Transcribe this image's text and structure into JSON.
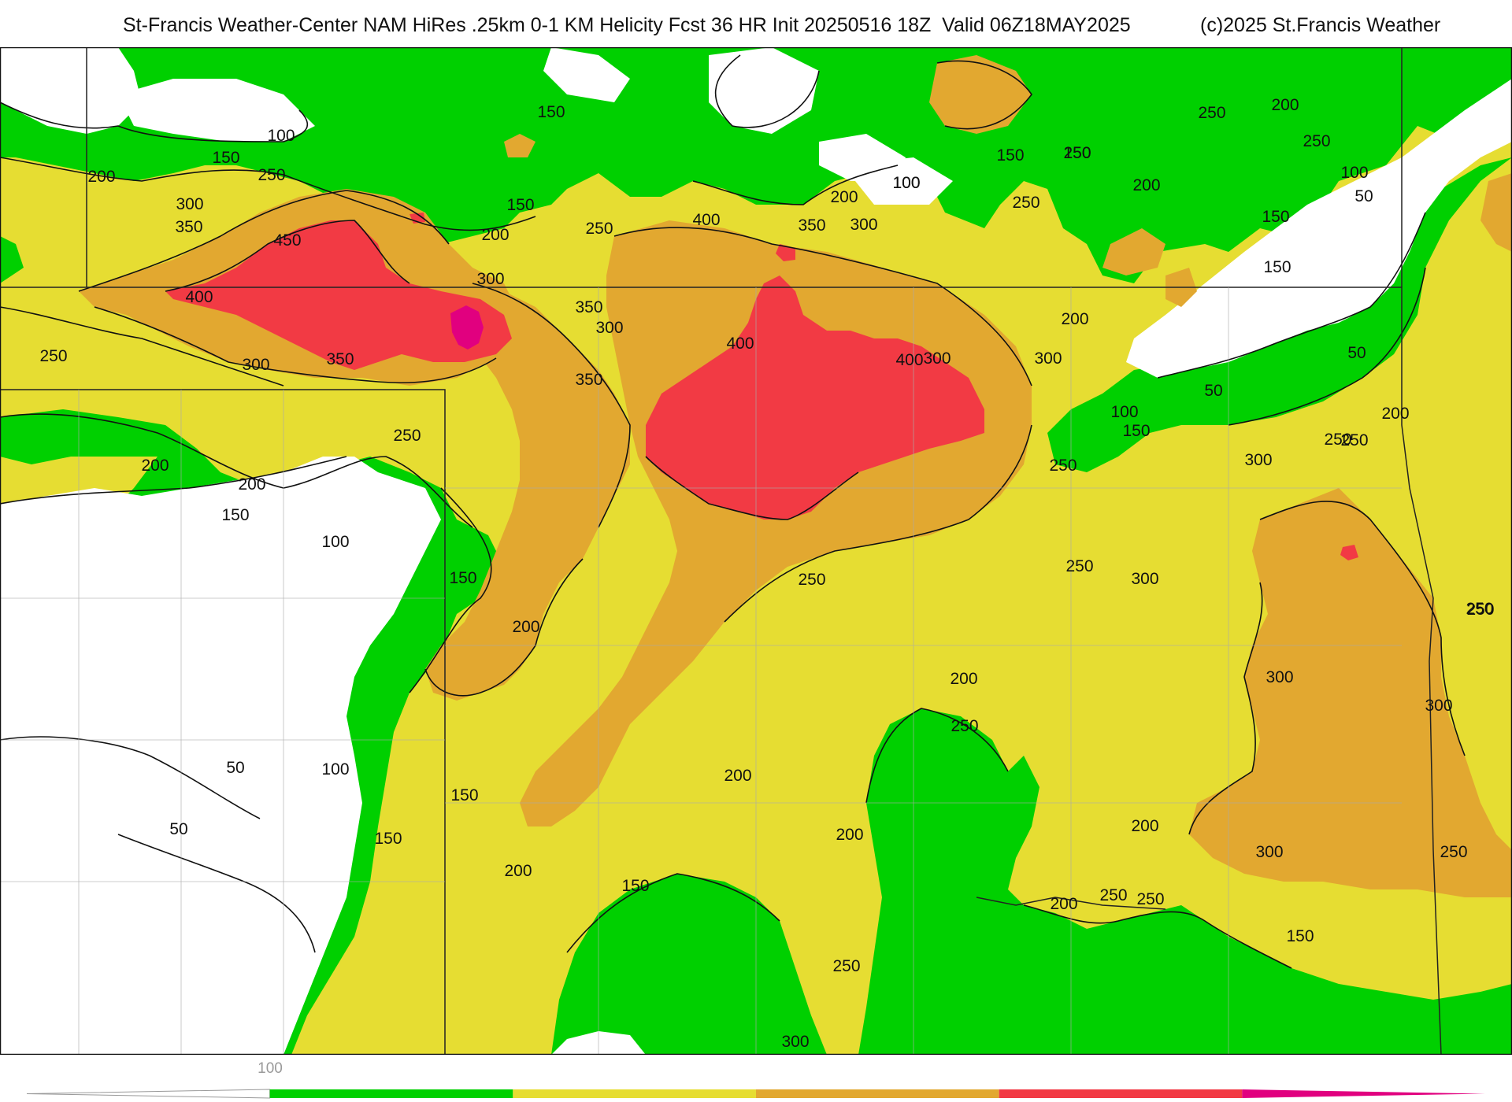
{
  "title": {
    "main": "St-Francis Weather-Center NAM HiRes .25km 0-1 KM Helicity Fcst 36 HR Init 20250516 18Z  Valid 06Z18MAY2025",
    "copyright": "(c)2025 St.Francis Weather"
  },
  "colors": {
    "below_100": "#ffffff",
    "100_200": "#00d000",
    "200_300": "#e6dd32",
    "300_400": "#e2a830",
    "400_500": "#f23a44",
    "500_plus": "#e1007f",
    "contour": "#111111",
    "boundary": "#222222",
    "county": "#aaaaaa"
  },
  "legend": {
    "tick_labels": [
      "100"
    ],
    "bins": [
      {
        "from": 0,
        "to": 100,
        "color": "#ffffff",
        "shape": "taper"
      },
      {
        "from": 100,
        "to": 200,
        "color": "#00d000"
      },
      {
        "from": 200,
        "to": 300,
        "color": "#e6dd32"
      },
      {
        "from": 300,
        "to": 400,
        "color": "#e2a830"
      },
      {
        "from": 400,
        "to": 500,
        "color": "#f23a44"
      },
      {
        "from": 500,
        "to": 600,
        "color": "#e1007f",
        "shape": "taper"
      }
    ]
  },
  "contour_labels": [
    "100",
    "150",
    "200",
    "250",
    "300",
    "350",
    "400",
    "450",
    "50"
  ],
  "contour_label_instances": [
    {
      "value": "100"
    },
    {
      "value": "150"
    },
    {
      "value": "150"
    },
    {
      "value": "200"
    },
    {
      "value": "250"
    },
    {
      "value": "300"
    },
    {
      "value": "350"
    },
    {
      "value": "450"
    },
    {
      "value": "400"
    },
    {
      "value": "150"
    },
    {
      "value": "200"
    },
    {
      "value": "250"
    },
    {
      "value": "300"
    },
    {
      "value": "300"
    },
    {
      "value": "350"
    },
    {
      "value": "400"
    },
    {
      "value": "250"
    },
    {
      "value": "300"
    },
    {
      "value": "350"
    },
    {
      "value": "250"
    },
    {
      "value": "200"
    },
    {
      "value": "200"
    },
    {
      "value": "150"
    },
    {
      "value": "100"
    },
    {
      "value": "150"
    },
    {
      "value": "200"
    },
    {
      "value": "150"
    },
    {
      "value": "100"
    },
    {
      "value": "50"
    },
    {
      "value": "50"
    },
    {
      "value": "300"
    },
    {
      "value": "350"
    },
    {
      "value": "400"
    },
    {
      "value": "200"
    },
    {
      "value": "300"
    },
    {
      "value": "400"
    },
    {
      "value": "350"
    },
    {
      "value": "250"
    },
    {
      "value": "100"
    },
    {
      "value": "150"
    },
    {
      "value": "100"
    },
    {
      "value": "150"
    },
    {
      "value": "250"
    },
    {
      "value": "200"
    },
    {
      "value": "250"
    },
    {
      "value": "200"
    },
    {
      "value": "150"
    },
    {
      "value": "250"
    },
    {
      "value": "100"
    },
    {
      "value": "50"
    },
    {
      "value": "150"
    },
    {
      "value": "200"
    },
    {
      "value": "300"
    },
    {
      "value": "50"
    },
    {
      "value": "50"
    },
    {
      "value": "100"
    },
    {
      "value": "200"
    },
    {
      "value": "250"
    },
    {
      "value": "300"
    },
    {
      "value": "150"
    },
    {
      "value": "250"
    },
    {
      "value": "250"
    },
    {
      "value": "250"
    },
    {
      "value": "300"
    },
    {
      "value": "300"
    },
    {
      "value": "250"
    },
    {
      "value": "300"
    },
    {
      "value": "250"
    },
    {
      "value": "200"
    },
    {
      "value": "250"
    },
    {
      "value": "200"
    },
    {
      "value": "150"
    },
    {
      "value": "200"
    },
    {
      "value": "200"
    },
    {
      "value": "250"
    },
    {
      "value": "200"
    },
    {
      "value": "250"
    },
    {
      "value": "150"
    },
    {
      "value": "250"
    },
    {
      "value": "300"
    },
    {
      "value": "250"
    },
    {
      "value": "200"
    },
    {
      "value": "250"
    },
    {
      "value": "300"
    },
    {
      "value": "150"
    }
  ]
}
